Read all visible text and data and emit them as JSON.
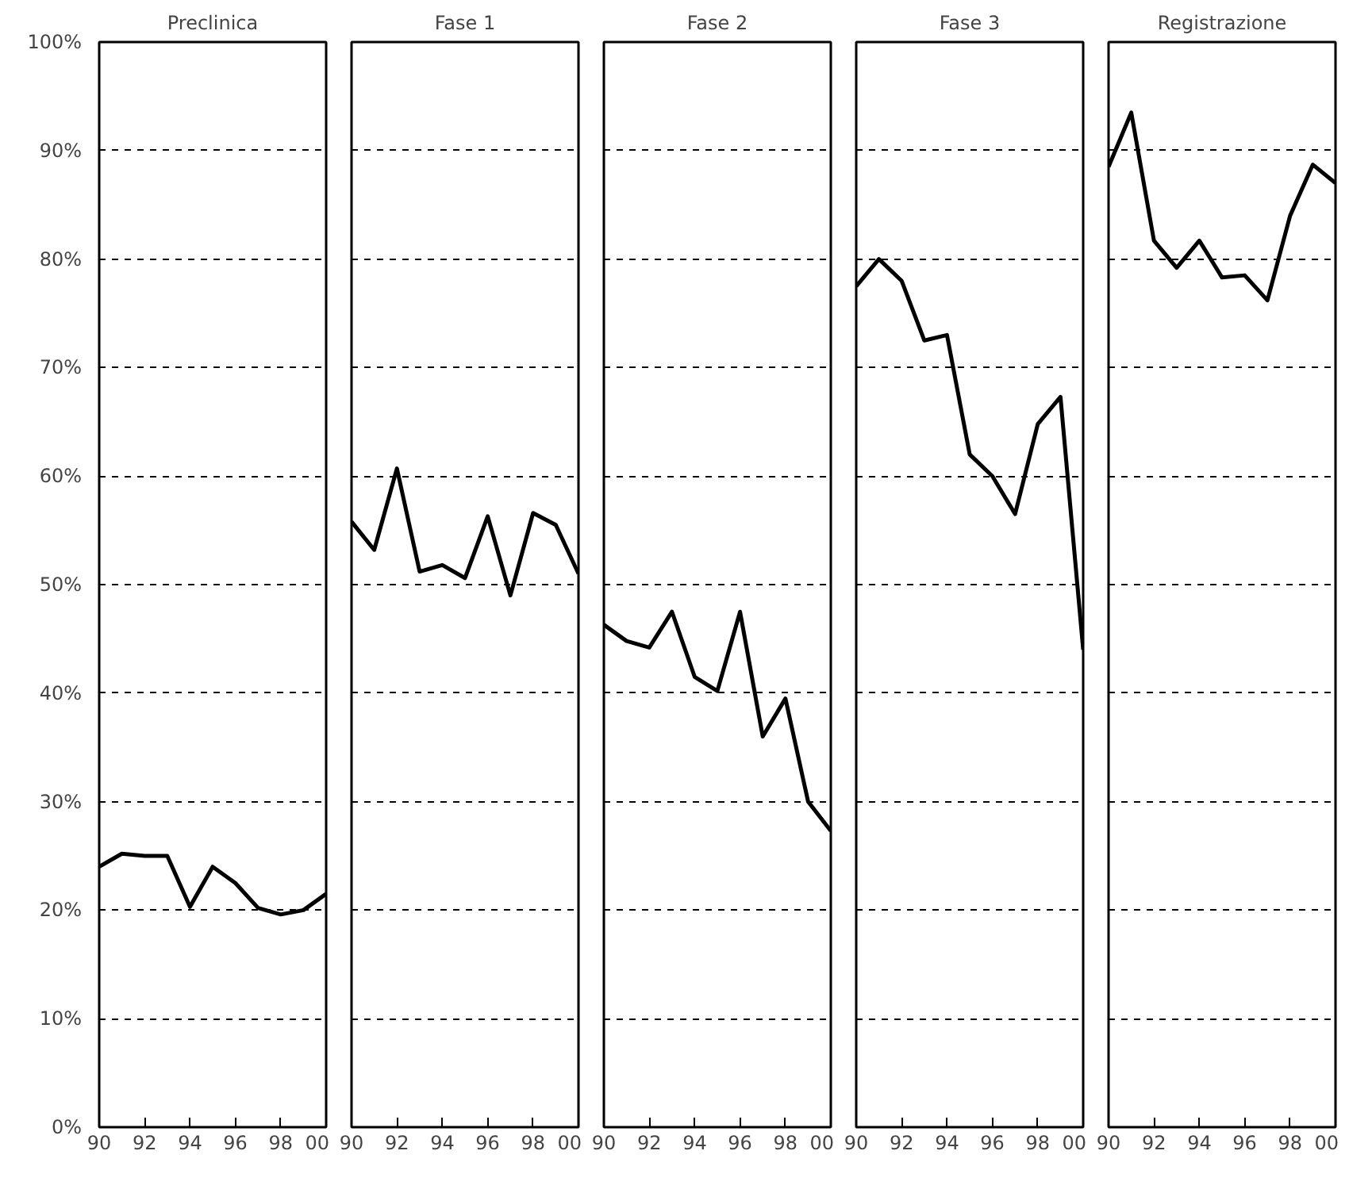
{
  "chart_data": [
    {
      "type": "line",
      "title": "Preclinica",
      "x": [
        1990,
        1991,
        1992,
        1993,
        1994,
        1995,
        1996,
        1997,
        1998,
        1999,
        2000
      ],
      "xlim": [
        1990,
        2000
      ],
      "xticks": [
        {
          "value": 1990,
          "label": "90"
        },
        {
          "value": 1992,
          "label": "92"
        },
        {
          "value": 1994,
          "label": "94"
        },
        {
          "value": 1996,
          "label": "96"
        },
        {
          "value": 1998,
          "label": "98"
        },
        {
          "value": 2000,
          "label": "00"
        }
      ],
      "ylim": [
        0,
        100
      ],
      "yticks": [
        {
          "value": 0,
          "label": "0%"
        },
        {
          "value": 10,
          "label": "10%"
        },
        {
          "value": 20,
          "label": "20%"
        },
        {
          "value": 30,
          "label": "30%"
        },
        {
          "value": 40,
          "label": "40%"
        },
        {
          "value": 50,
          "label": "50%"
        },
        {
          "value": 60,
          "label": "60%"
        },
        {
          "value": 70,
          "label": "70%"
        },
        {
          "value": 80,
          "label": "80%"
        },
        {
          "value": 90,
          "label": "90%"
        },
        {
          "value": 100,
          "label": "100%"
        }
      ],
      "grid": "y",
      "line_style": "solid",
      "series": [
        {
          "color": "#000000",
          "values": [
            24,
            25.2,
            25,
            25,
            20.3,
            24,
            22.5,
            20.2,
            19.6,
            20,
            21.5
          ]
        }
      ]
    },
    {
      "type": "line",
      "title": "Fase 1",
      "x": [
        1990,
        1991,
        1992,
        1993,
        1994,
        1995,
        1996,
        1997,
        1998,
        1999,
        2000
      ],
      "xlim": [
        1990,
        2000
      ],
      "xticks": [
        {
          "value": 1990,
          "label": "90"
        },
        {
          "value": 1992,
          "label": "92"
        },
        {
          "value": 1994,
          "label": "94"
        },
        {
          "value": 1996,
          "label": "96"
        },
        {
          "value": 1998,
          "label": "98"
        },
        {
          "value": 2000,
          "label": "00"
        }
      ],
      "ylim": [
        0,
        100
      ],
      "yticks": [
        0,
        10,
        20,
        30,
        40,
        50,
        60,
        70,
        80,
        90,
        100
      ],
      "grid": "y",
      "line_style": "solid",
      "tick_labels": "x",
      "series": [
        {
          "color": "#000000",
          "values": [
            55.8,
            53.2,
            60.7,
            51.2,
            51.8,
            50.6,
            56.3,
            49,
            56.6,
            55.5,
            51
          ]
        }
      ]
    },
    {
      "type": "line",
      "title": "Fase 2",
      "x": [
        1990,
        1991,
        1992,
        1993,
        1994,
        1995,
        1996,
        1997,
        1998,
        1999,
        2000
      ],
      "xlim": [
        1990,
        2000
      ],
      "xticks": [
        {
          "value": 1990,
          "label": "90"
        },
        {
          "value": 1992,
          "label": "92"
        },
        {
          "value": 1994,
          "label": "94"
        },
        {
          "value": 1996,
          "label": "96"
        },
        {
          "value": 1998,
          "label": "98"
        },
        {
          "value": 2000,
          "label": "00"
        }
      ],
      "ylim": [
        0,
        100
      ],
      "yticks": [
        0,
        10,
        20,
        30,
        40,
        50,
        60,
        70,
        80,
        90,
        100
      ],
      "grid": "y",
      "line_style": "solid",
      "tick_labels": "x",
      "series": [
        {
          "color": "#000000",
          "values": [
            46.3,
            44.8,
            44.2,
            47.5,
            41.5,
            40.2,
            47.5,
            36,
            39.5,
            30,
            27.3
          ]
        }
      ]
    },
    {
      "type": "line",
      "title": "Fase 3",
      "x": [
        1990,
        1991,
        1992,
        1993,
        1994,
        1995,
        1996,
        1997,
        1998,
        1999,
        2000
      ],
      "xlim": [
        1990,
        2000
      ],
      "xticks": [
        {
          "value": 1990,
          "label": "90"
        },
        {
          "value": 1992,
          "label": "92"
        },
        {
          "value": 1994,
          "label": "94"
        },
        {
          "value": 1996,
          "label": "96"
        },
        {
          "value": 1998,
          "label": "98"
        },
        {
          "value": 2000,
          "label": "00"
        }
      ],
      "ylim": [
        0,
        100
      ],
      "yticks": [
        0,
        10,
        20,
        30,
        40,
        50,
        60,
        70,
        80,
        90,
        100
      ],
      "grid": "y",
      "line_style": "solid",
      "tick_labels": "x",
      "series": [
        {
          "color": "#000000",
          "values": [
            77.5,
            80,
            78,
            72.5,
            73,
            62,
            60,
            56.5,
            64.8,
            67.3,
            44
          ]
        }
      ]
    },
    {
      "type": "line",
      "title": "Registrazione",
      "x": [
        1990,
        1991,
        1992,
        1993,
        1994,
        1995,
        1996,
        1997,
        1998,
        1999,
        2000
      ],
      "xlim": [
        1990,
        2000
      ],
      "xticks": [
        {
          "value": 1990,
          "label": "90"
        },
        {
          "value": 1992,
          "label": "92"
        },
        {
          "value": 1994,
          "label": "94"
        },
        {
          "value": 1996,
          "label": "96"
        },
        {
          "value": 1998,
          "label": "98"
        },
        {
          "value": 2000,
          "label": "00"
        }
      ],
      "ylim": [
        0,
        100
      ],
      "yticks": [
        0,
        10,
        20,
        30,
        40,
        50,
        60,
        70,
        80,
        90,
        100
      ],
      "grid": "y",
      "line_style": "solid",
      "tick_labels": "x",
      "series": [
        {
          "color": "#000000",
          "values": [
            88.5,
            93.5,
            81.7,
            79.2,
            81.7,
            78.3,
            78.5,
            76.2,
            84,
            88.7,
            87
          ]
        }
      ]
    }
  ]
}
